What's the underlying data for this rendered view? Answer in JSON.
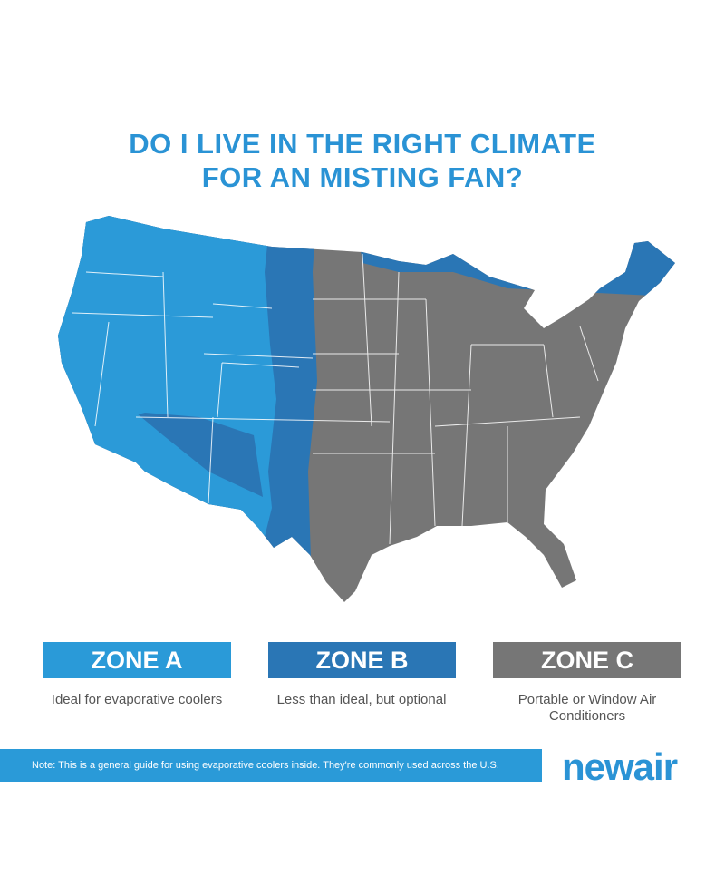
{
  "title": [
    "DO I LIVE IN THE RIGHT CLIMATE",
    "FOR AN MISTING FAN?"
  ],
  "zones": [
    {
      "label": "ZONE A",
      "description": "Ideal for evaporative coolers"
    },
    {
      "label": "ZONE B",
      "description": "Less than ideal, but optional"
    },
    {
      "label": "ZONE C",
      "description": "Portable or Window Air Conditioners"
    }
  ],
  "note": "Note: This is a general guide for using evaporative coolers inside. They're commonly used across the U.S.",
  "brand": "newair"
}
